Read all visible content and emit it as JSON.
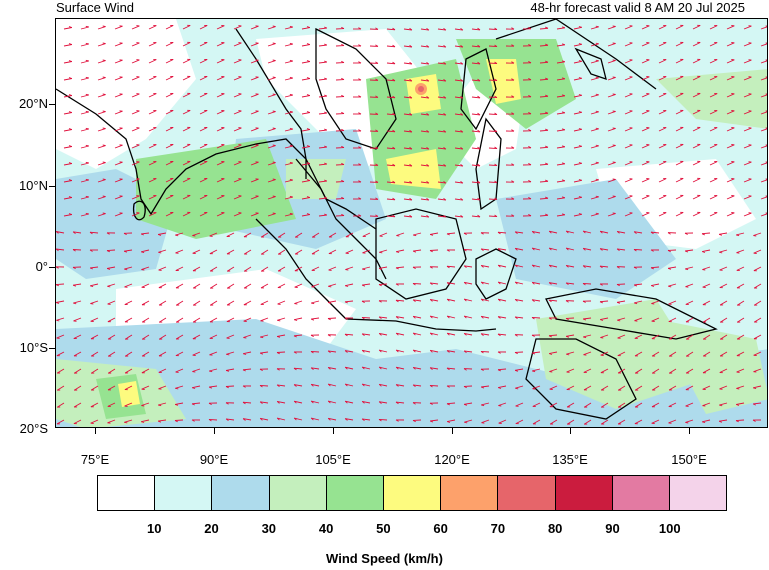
{
  "header": {
    "title": "Surface Wind",
    "valid_time": "48-hr forecast valid 8 AM 20 Jul 2025"
  },
  "map": {
    "lat_labels": [
      "20°N",
      "10°N",
      "0°",
      "10°S",
      "20°S"
    ],
    "lon_labels": [
      "75°E",
      "90°E",
      "105°E",
      "120°E",
      "135°E",
      "150°E"
    ],
    "extent": {
      "lon_min": 70,
      "lon_max": 160,
      "lat_min": -20,
      "lat_max": 30
    },
    "arrow_color": "#e0103c",
    "coastline_color": "#000000"
  },
  "legend": {
    "title": "Wind Speed (km/h)",
    "labels": [
      "10",
      "20",
      "30",
      "40",
      "50",
      "60",
      "70",
      "80",
      "90",
      "100"
    ],
    "colors": [
      "#ffffff",
      "#d4f7f4",
      "#aedbec",
      "#c4efbd",
      "#96e391",
      "#fdfb7f",
      "#fda16b",
      "#e6656a",
      "#cb1c3e",
      "#e37aa2",
      "#f4d3ea"
    ]
  }
}
